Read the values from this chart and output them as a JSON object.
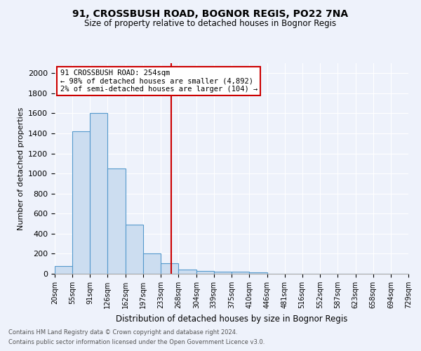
{
  "title1": "91, CROSSBUSH ROAD, BOGNOR REGIS, PO22 7NA",
  "title2": "Size of property relative to detached houses in Bognor Regis",
  "xlabel": "Distribution of detached houses by size in Bognor Regis",
  "ylabel": "Number of detached properties",
  "annotation_line1": "91 CROSSBUSH ROAD: 254sqm",
  "annotation_line2": "← 98% of detached houses are smaller (4,892)",
  "annotation_line3": "2% of semi-detached houses are larger (104) →",
  "footnote1": "Contains HM Land Registry data © Crown copyright and database right 2024.",
  "footnote2": "Contains public sector information licensed under the Open Government Licence v3.0.",
  "bin_edges": [
    20,
    55,
    91,
    126,
    162,
    197,
    233,
    268,
    304,
    339,
    375,
    410,
    446,
    481,
    516,
    552,
    587,
    623,
    658,
    694,
    729
  ],
  "bin_counts": [
    80,
    1420,
    1600,
    1050,
    490,
    205,
    105,
    40,
    28,
    22,
    18,
    15,
    0,
    0,
    0,
    0,
    0,
    0,
    0,
    0
  ],
  "bar_color": "#ccddf0",
  "bar_edge_color": "#5599cc",
  "vline_x": 254,
  "vline_color": "#cc0000",
  "ylim": [
    0,
    2100
  ],
  "yticks": [
    0,
    200,
    400,
    600,
    800,
    1000,
    1200,
    1400,
    1600,
    1800,
    2000
  ],
  "bg_color": "#eef2fb",
  "grid_color": "#ffffff",
  "annotation_box_color": "#ffffff",
  "annotation_box_edge": "#cc0000"
}
